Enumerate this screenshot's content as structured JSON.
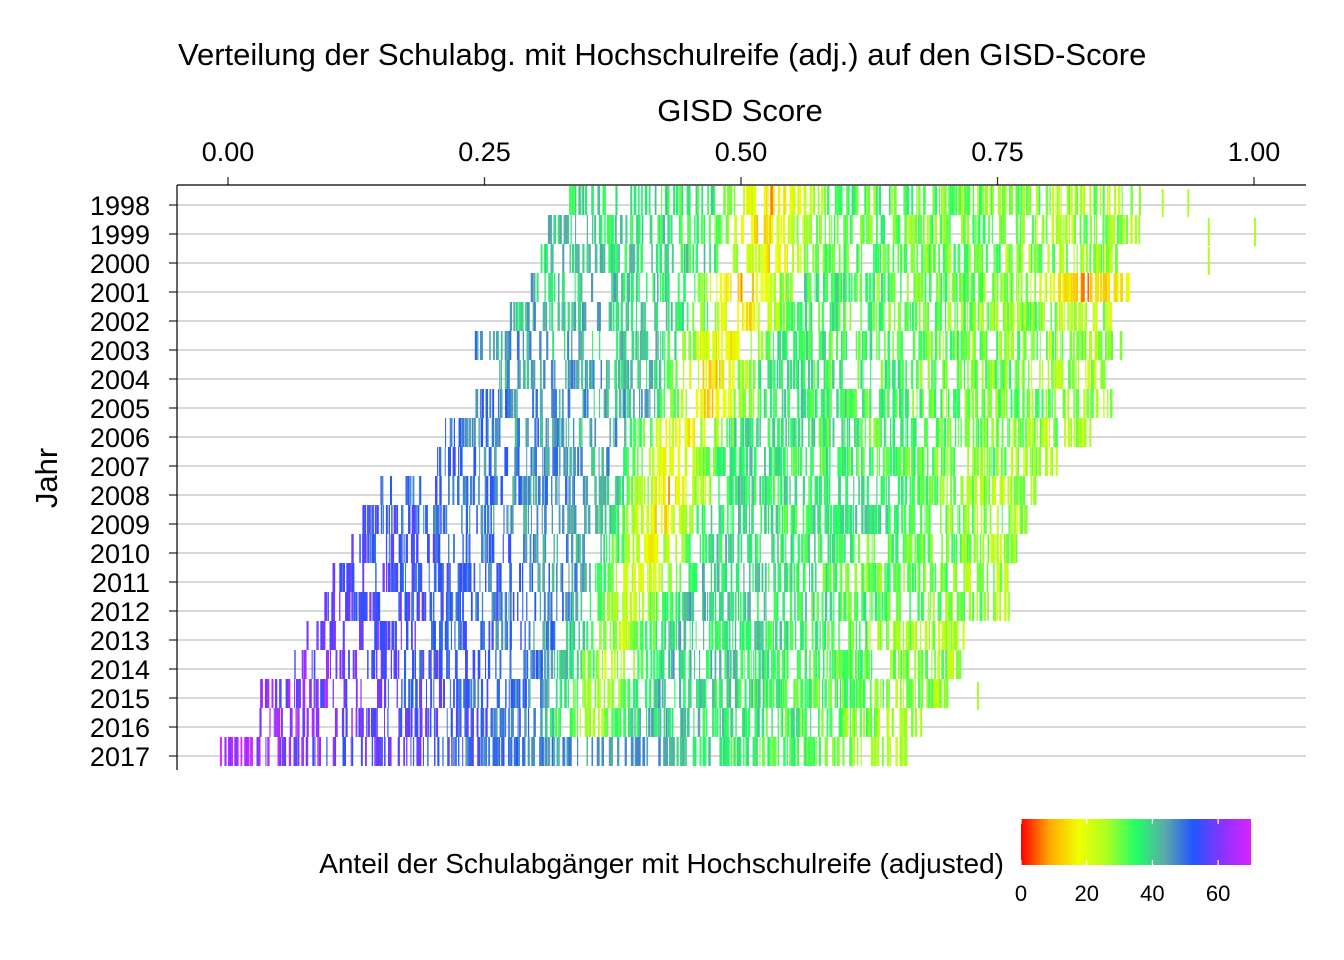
{
  "chart_data": {
    "type": "heatmap",
    "title": "Verteilung der Schulabg. mit Hochschulreife (adj.) auf den GISD-Score",
    "xlabel": "GISD Score",
    "ylabel": "Jahr",
    "xlim": [
      -0.05,
      1.05
    ],
    "x_ticks": [
      "0.00",
      "0.25",
      "0.50",
      "0.75",
      "1.00"
    ],
    "x_tick_values": [
      0.0,
      0.25,
      0.5,
      0.75,
      1.0
    ],
    "x_axis_position": "top",
    "grid": "horizontal",
    "years": [
      "1998",
      "1999",
      "2000",
      "2001",
      "2002",
      "2003",
      "2004",
      "2005",
      "2006",
      "2007",
      "2008",
      "2009",
      "2010",
      "2011",
      "2012",
      "2013",
      "2014",
      "2015",
      "2016",
      "2017"
    ],
    "rows": [
      {
        "year": "1998",
        "min": 0.33,
        "max": 0.89,
        "outliers": [
          0.91,
          0.935
        ],
        "hotspots": [
          {
            "x": 0.53,
            "v": 5
          }
        ]
      },
      {
        "year": "1999",
        "min": 0.31,
        "max": 0.89,
        "outliers": [
          0.955,
          1.0
        ],
        "hotspots": [
          {
            "x": 0.52,
            "v": 8
          }
        ]
      },
      {
        "year": "2000",
        "min": 0.3,
        "max": 0.87,
        "outliers": [
          0.955
        ],
        "hotspots": [
          {
            "x": 0.53,
            "v": 10
          }
        ]
      },
      {
        "year": "2001",
        "min": 0.28,
        "max": 0.88,
        "outliers": [],
        "hotspots": [
          {
            "x": 0.5,
            "v": 5
          },
          {
            "x": 0.84,
            "v": 3
          }
        ]
      },
      {
        "year": "2002",
        "min": 0.27,
        "max": 0.86,
        "outliers": [],
        "hotspots": [
          {
            "x": 0.5,
            "v": 9
          }
        ]
      },
      {
        "year": "2003",
        "min": 0.24,
        "max": 0.87,
        "outliers": [],
        "hotspots": [
          {
            "x": 0.48,
            "v": 5
          }
        ]
      },
      {
        "year": "2004",
        "min": 0.26,
        "max": 0.86,
        "outliers": [],
        "hotspots": [
          {
            "x": 0.47,
            "v": 6
          }
        ]
      },
      {
        "year": "2005",
        "min": 0.24,
        "max": 0.86,
        "outliers": [],
        "hotspots": [
          {
            "x": 0.47,
            "v": 6
          }
        ]
      },
      {
        "year": "2006",
        "min": 0.21,
        "max": 0.84,
        "outliers": [],
        "hotspots": [
          {
            "x": 0.44,
            "v": 8
          }
        ]
      },
      {
        "year": "2007",
        "min": 0.19,
        "max": 0.81,
        "outliers": [],
        "hotspots": [
          {
            "x": 0.43,
            "v": 9
          }
        ]
      },
      {
        "year": "2008",
        "min": 0.14,
        "max": 0.79,
        "outliers": [],
        "hotspots": [
          {
            "x": 0.43,
            "v": 6
          },
          {
            "x": 0.62,
            "v": 40
          }
        ]
      },
      {
        "year": "2009",
        "min": 0.13,
        "max": 0.78,
        "outliers": [],
        "hotspots": [
          {
            "x": 0.42,
            "v": 8
          },
          {
            "x": 0.62,
            "v": 42
          }
        ]
      },
      {
        "year": "2010",
        "min": 0.12,
        "max": 0.77,
        "outliers": [],
        "hotspots": [
          {
            "x": 0.41,
            "v": 12
          }
        ]
      },
      {
        "year": "2011",
        "min": 0.1,
        "max": 0.76,
        "outliers": [],
        "hotspots": [
          {
            "x": 0.4,
            "v": 12
          }
        ]
      },
      {
        "year": "2012",
        "min": 0.09,
        "max": 0.76,
        "outliers": [],
        "hotspots": [
          {
            "x": 0.39,
            "v": 15
          }
        ]
      },
      {
        "year": "2013",
        "min": 0.07,
        "max": 0.72,
        "outliers": [],
        "hotspots": [
          {
            "x": 0.38,
            "v": 18
          }
        ]
      },
      {
        "year": "2014",
        "min": 0.06,
        "max": 0.72,
        "outliers": [],
        "hotspots": [
          {
            "x": 0.37,
            "v": 18
          }
        ]
      },
      {
        "year": "2015",
        "min": 0.03,
        "max": 0.7,
        "outliers": [
          0.73
        ],
        "hotspots": [
          {
            "x": 0.36,
            "v": 18
          }
        ]
      },
      {
        "year": "2016",
        "min": 0.03,
        "max": 0.68,
        "outliers": [],
        "hotspots": [
          {
            "x": 0.35,
            "v": 18
          }
        ]
      },
      {
        "year": "2017",
        "min": -0.01,
        "max": 0.66,
        "outliers": [],
        "hotspots": [
          {
            "x": 0.4,
            "v": 48
          }
        ]
      }
    ],
    "legend": {
      "title": "Anteil der Schulabgänger mit Hochschulreife (adjusted)",
      "position": "bottom",
      "range": [
        0,
        70
      ],
      "ticks": [
        "0",
        "20",
        "40",
        "60"
      ],
      "tick_values": [
        0,
        20,
        40,
        60
      ],
      "colors": [
        "#ff0000",
        "#ffaa00",
        "#f0ff00",
        "#aaff22",
        "#22ff66",
        "#5aaaaa",
        "#2255ff",
        "#8833ff",
        "#dd22ff"
      ]
    }
  }
}
